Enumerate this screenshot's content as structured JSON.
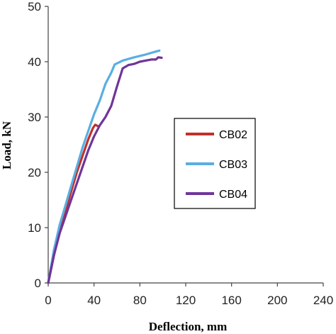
{
  "chart_data": {
    "type": "line",
    "xlabel": "Deflection, mm",
    "ylabel": "Load, kN",
    "xlim": [
      0,
      240
    ],
    "ylim": [
      0,
      50
    ],
    "xticks": [
      "0",
      "40",
      "80",
      "120",
      "160",
      "200",
      "240"
    ],
    "yticks": [
      "0",
      "10",
      "20",
      "30",
      "40",
      "50"
    ],
    "grid": false,
    "legend_position": "center-right",
    "series": [
      {
        "name": "CB02",
        "color": "#c0312b",
        "x": [
          0,
          5,
          10,
          15,
          20,
          25,
          30,
          35,
          39,
          41,
          44
        ],
        "y": [
          0,
          5,
          9.5,
          13,
          16.5,
          20,
          23,
          26,
          28,
          28.6,
          28.3
        ]
      },
      {
        "name": "CB03",
        "color": "#5aaee2",
        "x": [
          0,
          5,
          10,
          15,
          20,
          25,
          30,
          35,
          40,
          45,
          50,
          55,
          58,
          65,
          75,
          85,
          95,
          97
        ],
        "y": [
          0,
          6,
          10.5,
          14,
          17.5,
          21,
          24.5,
          27.5,
          30.5,
          33,
          36,
          38,
          39.5,
          40.2,
          40.8,
          41.3,
          41.9,
          42
        ]
      },
      {
        "name": "CB04",
        "color": "#6f3598",
        "x": [
          0,
          5,
          10,
          15,
          20,
          25,
          30,
          35,
          40,
          45,
          50,
          55,
          60,
          65,
          70,
          75,
          80,
          85,
          90,
          94,
          96,
          99
        ],
        "y": [
          0,
          5,
          9,
          12,
          15,
          18,
          21,
          24,
          26.5,
          28.5,
          30,
          32,
          35.5,
          38.8,
          39.4,
          39.6,
          40,
          40.2,
          40.4,
          40.4,
          40.8,
          40.7
        ]
      }
    ]
  }
}
